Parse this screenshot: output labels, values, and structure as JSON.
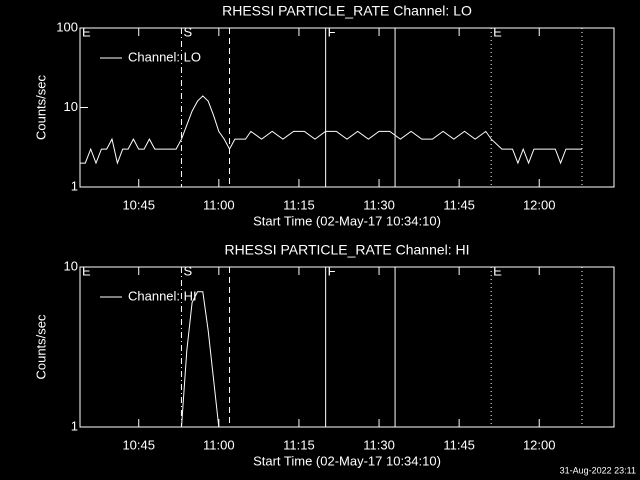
{
  "chart_data": [
    {
      "type": "line",
      "title": "RHESSI PARTICLE_RATE Channel: LO",
      "xlabel": "Start Time (02-May-17 10:34:10)",
      "ylabel": "Counts/sec",
      "xlim": [
        "10:34",
        "12:14"
      ],
      "xticks": [
        "10:45",
        "11:00",
        "11:15",
        "11:30",
        "11:45",
        "12:00"
      ],
      "ylim": [
        1,
        100
      ],
      "yticks": [
        1,
        10,
        100
      ],
      "log_y": true,
      "legend": "upper left",
      "markers": [
        {
          "x": "10:34",
          "style": "solid",
          "label": "E"
        },
        {
          "x": "10:53",
          "style": "dashdot",
          "label": "S"
        },
        {
          "x": "11:02",
          "style": "dashed"
        },
        {
          "x": "11:20",
          "style": "solid",
          "label": "F"
        },
        {
          "x": "11:33",
          "style": "solid"
        },
        {
          "x": "11:51",
          "style": "dotted",
          "label": "E"
        },
        {
          "x": "12:08",
          "style": "dotted"
        }
      ],
      "series": [
        {
          "name": "Channel: LO",
          "color": "#ffffff",
          "x": [
            "10:34",
            "10:35",
            "10:36",
            "10:37",
            "10:38",
            "10:39",
            "10:40",
            "10:41",
            "10:42",
            "10:43",
            "10:44",
            "10:45",
            "10:46",
            "10:47",
            "10:48",
            "10:50",
            "10:52",
            "10:53",
            "10:54",
            "10:55",
            "10:56",
            "10:57",
            "10:58",
            "10:59",
            "11:00",
            "11:01",
            "11:02",
            "11:03",
            "11:05",
            "11:06",
            "11:08",
            "11:10",
            "11:12",
            "11:14",
            "11:16",
            "11:18",
            "11:20",
            "11:22",
            "11:24",
            "11:26",
            "11:28",
            "11:30",
            "11:32",
            "11:34",
            "11:36",
            "11:38",
            "11:40",
            "11:42",
            "11:44",
            "11:46",
            "11:48",
            "11:50",
            "11:51",
            "11:53",
            "11:55",
            "11:56",
            "11:57",
            "11:58",
            "11:59",
            "12:00",
            "12:03",
            "12:04",
            "12:05",
            "12:08"
          ],
          "values": [
            2,
            2,
            3,
            2,
            3,
            3,
            4,
            2,
            3,
            3,
            4,
            3,
            3,
            4,
            3,
            3,
            3,
            4,
            6,
            9,
            12,
            14,
            12,
            8,
            5,
            4,
            3,
            4,
            4,
            5,
            4,
            5,
            4,
            5,
            5,
            4,
            5,
            5,
            4,
            5,
            4,
            5,
            5,
            4,
            5,
            4,
            4,
            5,
            4,
            5,
            4,
            5,
            4,
            3,
            3,
            2,
            3,
            2,
            3,
            3,
            3,
            2,
            3,
            3
          ]
        }
      ]
    },
    {
      "type": "line",
      "title": "RHESSI PARTICLE_RATE Channel: HI",
      "xlabel": "Start Time (02-May-17 10:34:10)",
      "ylabel": "Counts/sec",
      "xlim": [
        "10:34",
        "12:14"
      ],
      "xticks": [
        "10:45",
        "11:00",
        "11:15",
        "11:30",
        "11:45",
        "12:00"
      ],
      "ylim": [
        1,
        10
      ],
      "yticks": [
        1,
        10
      ],
      "log_y": true,
      "legend": "upper left",
      "markers": [
        {
          "x": "10:34",
          "style": "solid",
          "label": "E"
        },
        {
          "x": "10:53",
          "style": "dashdot",
          "label": "S"
        },
        {
          "x": "11:02",
          "style": "dashed"
        },
        {
          "x": "11:20",
          "style": "solid",
          "label": "F"
        },
        {
          "x": "11:33",
          "style": "solid"
        },
        {
          "x": "11:51",
          "style": "dotted",
          "label": "E"
        },
        {
          "x": "12:08",
          "style": "dotted"
        }
      ],
      "series": [
        {
          "name": "Channel: HI",
          "color": "#ffffff",
          "x": [
            "10:53",
            "10:54",
            "10:55",
            "10:56",
            "10:57",
            "10:58",
            "10:59",
            "11:00"
          ],
          "values": [
            1,
            3,
            6,
            7,
            7,
            4,
            2,
            1
          ]
        }
      ]
    }
  ],
  "footer": "31-Aug-2022 23:11"
}
